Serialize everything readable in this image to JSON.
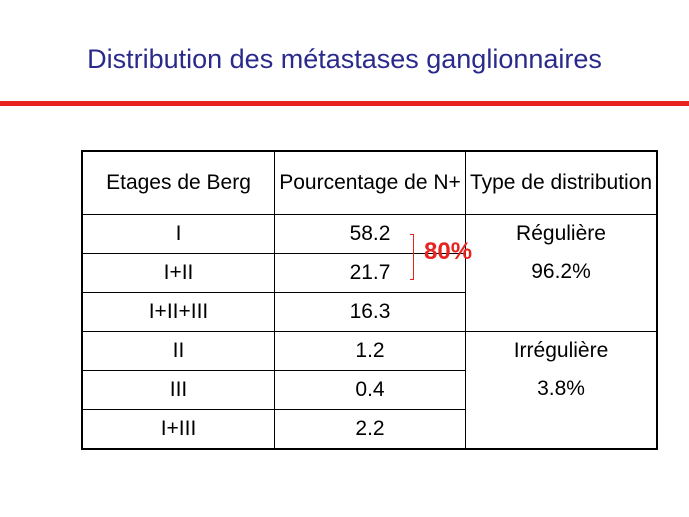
{
  "slide": {
    "title": "Distribution des métastases ganglionnaires",
    "highlight": "80%"
  },
  "table": {
    "headers": [
      "Etages de Berg",
      "Pourcentage de N+",
      "Type de distribution"
    ],
    "rows": [
      {
        "etage": "I",
        "pourcentage": "58.2"
      },
      {
        "etage": "I+II",
        "pourcentage": "21.7"
      },
      {
        "etage": "I+II+III",
        "pourcentage": "16.3"
      },
      {
        "etage": "II",
        "pourcentage": "1.2"
      },
      {
        "etage": "III",
        "pourcentage": "0.4"
      },
      {
        "etage": "I+III",
        "pourcentage": "2.2"
      }
    ],
    "groups": [
      {
        "type": "Régulière",
        "percent": "96.2%"
      },
      {
        "type": "Irrégulière",
        "percent": "3.8%"
      }
    ]
  },
  "colors": {
    "title": "#2a2a8c",
    "accent": "#e8231f"
  }
}
